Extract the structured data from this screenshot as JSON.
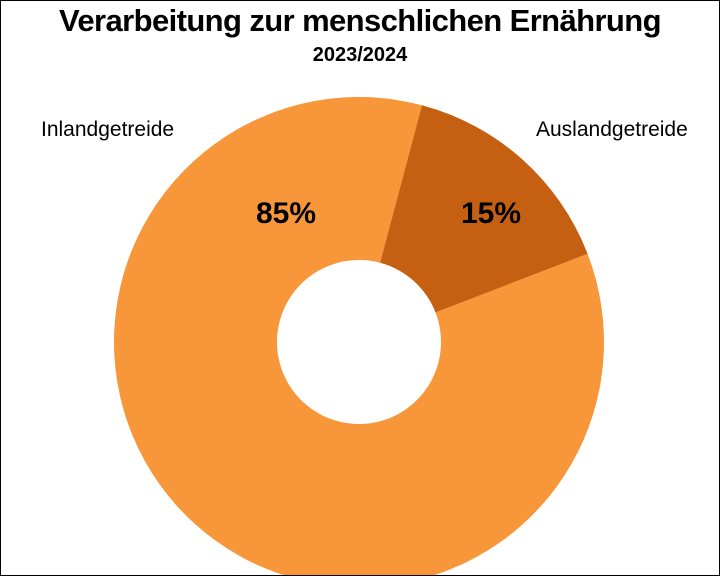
{
  "chart_data": {
    "type": "pie",
    "title": "Verarbeitung zur menschlichen Ernährung",
    "subtitle": "2023/2024",
    "donut": true,
    "slices": [
      {
        "label": "Inlandgetreide",
        "value": 85,
        "value_label": "85%",
        "color": "#F7973A"
      },
      {
        "label": "Auslandgetreide",
        "value": 15,
        "value_label": "15%",
        "color": "#C55F11"
      }
    ]
  }
}
